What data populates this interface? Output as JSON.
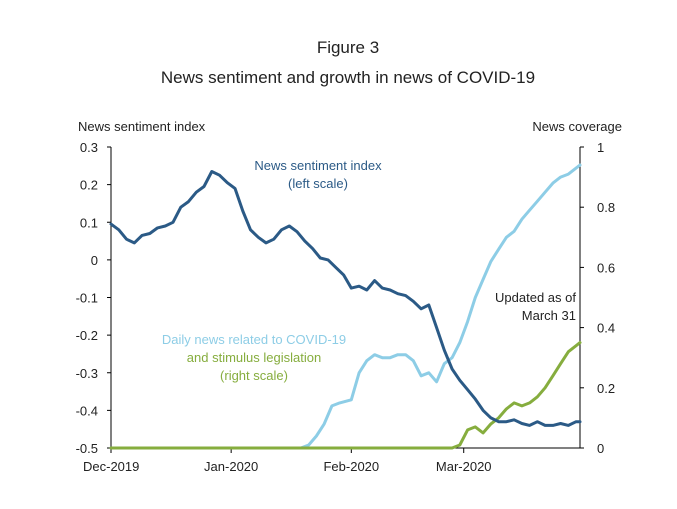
{
  "chart_data": {
    "type": "line",
    "title": "Figure 3",
    "subtitle": "News sentiment and growth in news of COVID-19",
    "ylabel_left": "News sentiment index",
    "ylabel_right": "News coverage",
    "ylim_left": [
      -0.5,
      0.3
    ],
    "ylim_right": [
      0,
      1
    ],
    "yticks_left": [
      "0.3",
      "0.2",
      "0.1",
      "0",
      "-0.1",
      "-0.2",
      "-0.3",
      "-0.4",
      "-0.5"
    ],
    "yticks_right": [
      "1",
      "0.8",
      "0.6",
      "0.4",
      "0.2",
      "0"
    ],
    "xticks": [
      {
        "label": "Dec-2019",
        "date": "2019-12-01"
      },
      {
        "label": "Jan-2020",
        "date": "2020-01-01"
      },
      {
        "label": "Feb-2020",
        "date": "2020-02-01"
      },
      {
        "label": "Mar-2020",
        "date": "2020-03-01"
      }
    ],
    "x_range": [
      "2019-12-01",
      "2020-03-31"
    ],
    "colors": {
      "sentiment": "#2b5a86",
      "covid": "#8dcde6",
      "stimulus": "#86ad3e",
      "axis": "#000000",
      "text": "#222222"
    },
    "annotations": {
      "sentiment_label": [
        "News sentiment index",
        "(left scale)"
      ],
      "covid_label": [
        "Daily news related to COVID-19",
        "and stimulus legislation",
        "(right scale)"
      ],
      "updated": [
        "Updated as of",
        "March 31"
      ]
    },
    "series": [
      {
        "name": "News sentiment index",
        "axis": "left",
        "x": [
          "2019-12-01",
          "2019-12-03",
          "2019-12-05",
          "2019-12-07",
          "2019-12-09",
          "2019-12-11",
          "2019-12-13",
          "2019-12-15",
          "2019-12-17",
          "2019-12-19",
          "2019-12-21",
          "2019-12-23",
          "2019-12-25",
          "2019-12-27",
          "2019-12-29",
          "2019-12-31",
          "2020-01-02",
          "2020-01-04",
          "2020-01-06",
          "2020-01-08",
          "2020-01-10",
          "2020-01-12",
          "2020-01-14",
          "2020-01-16",
          "2020-01-18",
          "2020-01-20",
          "2020-01-22",
          "2020-01-24",
          "2020-01-26",
          "2020-01-28",
          "2020-01-30",
          "2020-02-01",
          "2020-02-03",
          "2020-02-05",
          "2020-02-07",
          "2020-02-09",
          "2020-02-11",
          "2020-02-13",
          "2020-02-15",
          "2020-02-17",
          "2020-02-19",
          "2020-02-21",
          "2020-02-23",
          "2020-02-25",
          "2020-02-27",
          "2020-02-29",
          "2020-03-02",
          "2020-03-04",
          "2020-03-06",
          "2020-03-08",
          "2020-03-10",
          "2020-03-12",
          "2020-03-14",
          "2020-03-16",
          "2020-03-18",
          "2020-03-20",
          "2020-03-22",
          "2020-03-24",
          "2020-03-26",
          "2020-03-28",
          "2020-03-30",
          "2020-03-31"
        ],
        "values": [
          0.095,
          0.08,
          0.055,
          0.045,
          0.065,
          0.07,
          0.085,
          0.09,
          0.1,
          0.14,
          0.155,
          0.18,
          0.195,
          0.235,
          0.225,
          0.205,
          0.19,
          0.13,
          0.08,
          0.06,
          0.045,
          0.055,
          0.08,
          0.09,
          0.075,
          0.05,
          0.03,
          0.005,
          0.0,
          -0.02,
          -0.04,
          -0.075,
          -0.07,
          -0.08,
          -0.055,
          -0.075,
          -0.08,
          -0.09,
          -0.095,
          -0.11,
          -0.13,
          -0.12,
          -0.18,
          -0.24,
          -0.29,
          -0.32,
          -0.345,
          -0.37,
          -0.4,
          -0.42,
          -0.43,
          -0.43,
          -0.425,
          -0.435,
          -0.44,
          -0.43,
          -0.44,
          -0.44,
          -0.435,
          -0.44,
          -0.43,
          -0.43
        ]
      },
      {
        "name": "Daily news related to COVID-19",
        "axis": "right",
        "x": [
          "2019-12-01",
          "2020-01-19",
          "2020-01-21",
          "2020-01-23",
          "2020-01-25",
          "2020-01-27",
          "2020-01-29",
          "2020-02-01",
          "2020-02-03",
          "2020-02-05",
          "2020-02-07",
          "2020-02-09",
          "2020-02-11",
          "2020-02-13",
          "2020-02-15",
          "2020-02-17",
          "2020-02-19",
          "2020-02-21",
          "2020-02-23",
          "2020-02-25",
          "2020-02-27",
          "2020-02-29",
          "2020-03-02",
          "2020-03-04",
          "2020-03-06",
          "2020-03-08",
          "2020-03-10",
          "2020-03-12",
          "2020-03-14",
          "2020-03-16",
          "2020-03-18",
          "2020-03-20",
          "2020-03-22",
          "2020-03-24",
          "2020-03-26",
          "2020-03-28",
          "2020-03-30",
          "2020-03-31"
        ],
        "values": [
          0.0,
          0.0,
          0.01,
          0.04,
          0.08,
          0.14,
          0.15,
          0.16,
          0.25,
          0.29,
          0.31,
          0.3,
          0.3,
          0.31,
          0.31,
          0.29,
          0.24,
          0.25,
          0.22,
          0.28,
          0.3,
          0.35,
          0.42,
          0.5,
          0.56,
          0.62,
          0.66,
          0.7,
          0.72,
          0.76,
          0.79,
          0.82,
          0.85,
          0.88,
          0.9,
          0.91,
          0.93,
          0.94
        ]
      },
      {
        "name": "Stimulus legislation",
        "axis": "right",
        "x": [
          "2019-12-01",
          "2020-02-27",
          "2020-02-29",
          "2020-03-02",
          "2020-03-04",
          "2020-03-06",
          "2020-03-08",
          "2020-03-10",
          "2020-03-12",
          "2020-03-14",
          "2020-03-16",
          "2020-03-18",
          "2020-03-20",
          "2020-03-22",
          "2020-03-24",
          "2020-03-26",
          "2020-03-28",
          "2020-03-30",
          "2020-03-31"
        ],
        "values": [
          0.0,
          0.0,
          0.01,
          0.06,
          0.07,
          0.05,
          0.08,
          0.1,
          0.13,
          0.15,
          0.14,
          0.15,
          0.17,
          0.2,
          0.24,
          0.28,
          0.32,
          0.34,
          0.35
        ]
      }
    ]
  }
}
